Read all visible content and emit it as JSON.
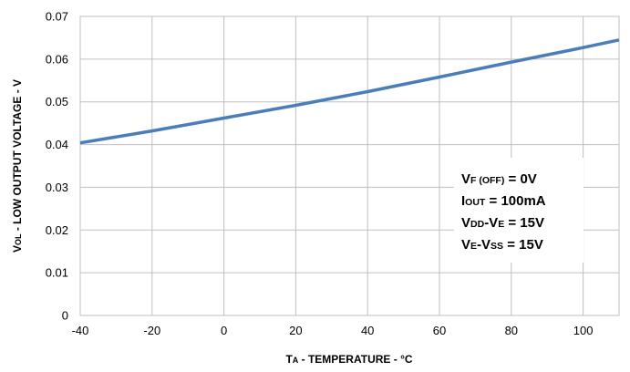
{
  "chart_data": {
    "type": "line",
    "xlabel": {
      "a": "T",
      "b": "A",
      "c": " - TEMPERATURE - °C"
    },
    "ylabel": {
      "a": "V",
      "b": "OL",
      "c": " - LOW OUTPUT VOLTAGE - V"
    },
    "xlim": [
      -40,
      110
    ],
    "ylim": [
      0,
      0.07
    ],
    "x_ticks": [
      "-40",
      "-20",
      "0",
      "20",
      "40",
      "60",
      "80",
      "100"
    ],
    "y_ticks": [
      "0",
      "0.01",
      "0.02",
      "0.03",
      "0.04",
      "0.05",
      "0.06",
      "0.07"
    ],
    "grid": true,
    "series": [
      {
        "color": "#4a7ebb",
        "x": [
          -40,
          -20,
          0,
          20,
          40,
          60,
          80,
          100,
          110
        ],
        "y": [
          0.0404,
          0.0432,
          0.0462,
          0.0492,
          0.0524,
          0.0558,
          0.0593,
          0.0627,
          0.0645
        ]
      }
    ],
    "annotation": [
      {
        "a": "V",
        "b": "F (OFF)",
        "c": " = 0V"
      },
      {
        "a": "I",
        "b": "OUT",
        "c": " = 100mA"
      },
      {
        "a": "V",
        "b": "DD",
        "c": "-V",
        "d": "E",
        "e": " = 15V"
      },
      {
        "a": "V",
        "b": "E",
        "c": "-V",
        "d": "SS",
        "e": " = 15V"
      }
    ]
  }
}
